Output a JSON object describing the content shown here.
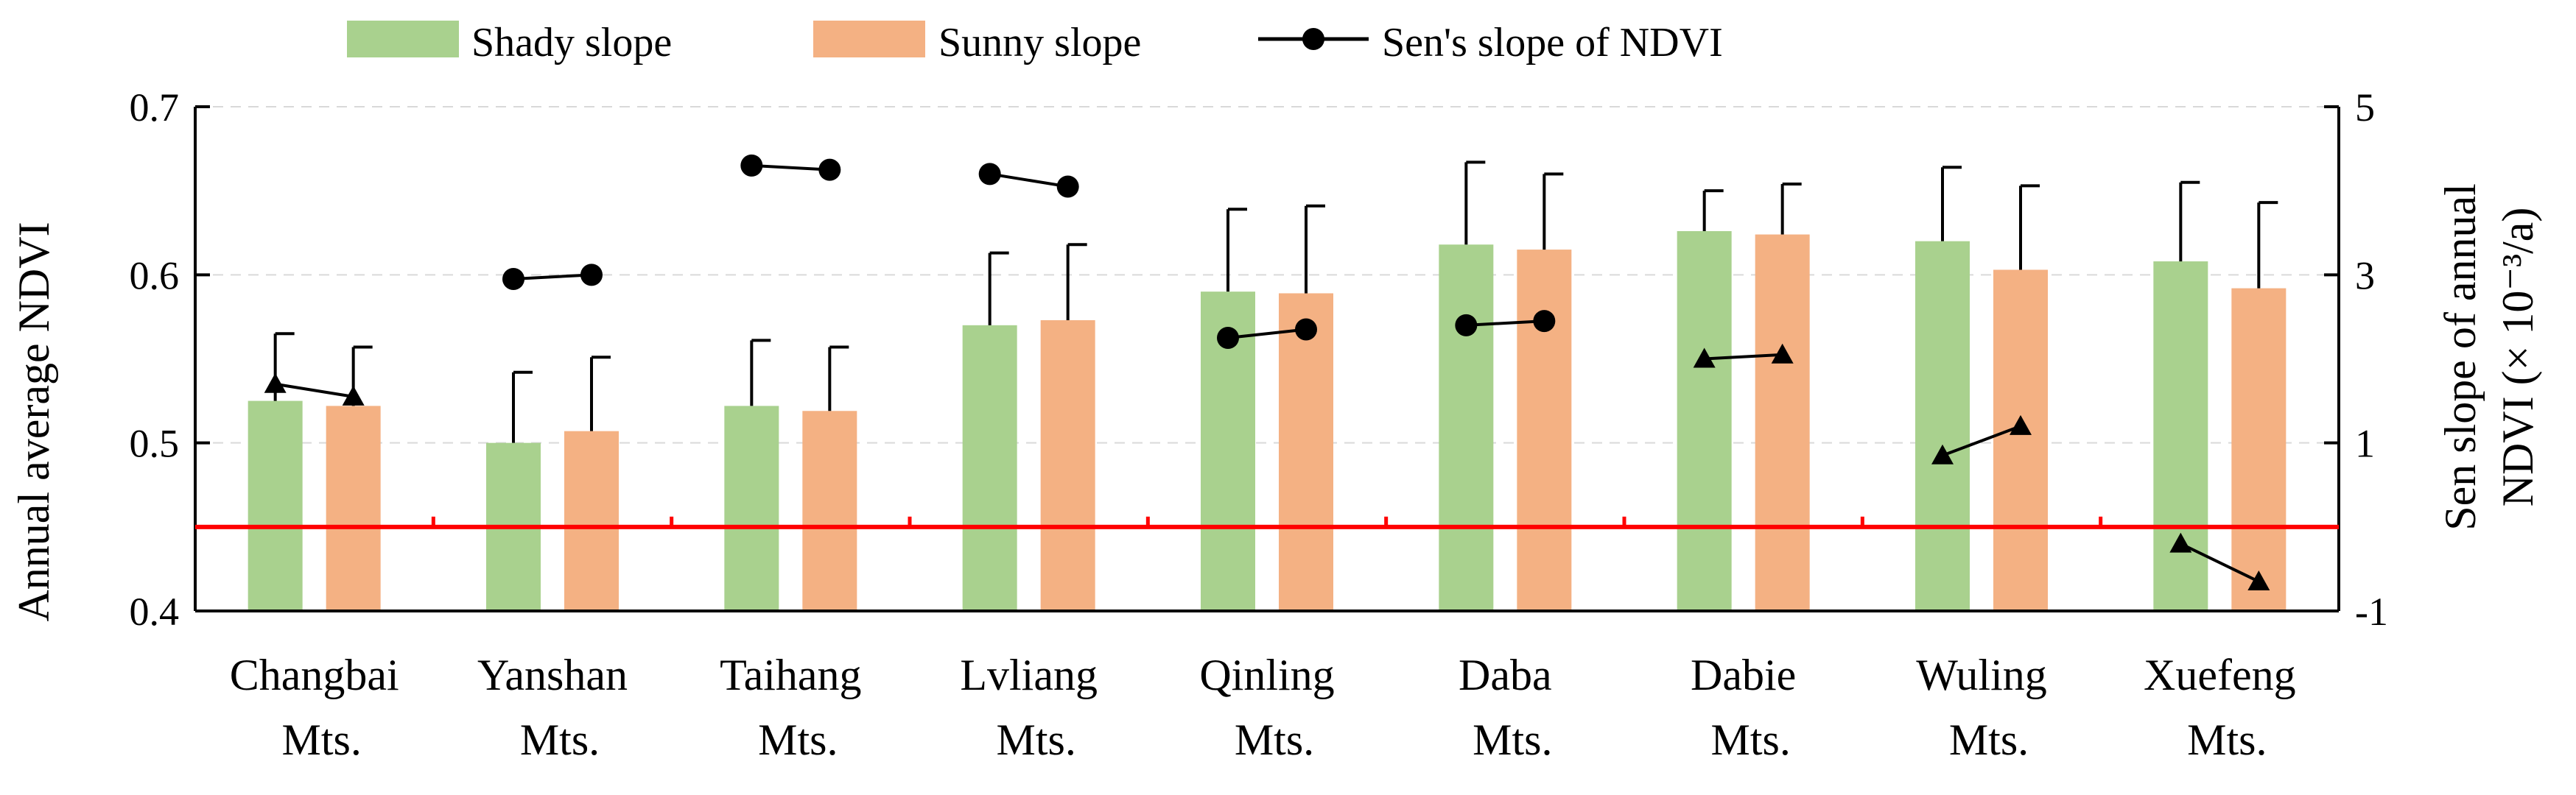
{
  "chart_data": {
    "type": "bar",
    "categories": [
      [
        "Changbai",
        "Mts."
      ],
      [
        "Yanshan",
        "Mts."
      ],
      [
        "Taihang",
        "Mts."
      ],
      [
        "Lvliang",
        "Mts."
      ],
      [
        "Qinling",
        "Mts."
      ],
      [
        "Daba",
        "Mts."
      ],
      [
        "Dabie",
        "Mts."
      ],
      [
        "Wuling",
        "Mts."
      ],
      [
        "Xuefeng",
        "Mts."
      ]
    ],
    "series": [
      {
        "name": "Shady slope",
        "color": "#a9d18e",
        "values": [
          0.525,
          0.5,
          0.522,
          0.57,
          0.59,
          0.618,
          0.626,
          0.62,
          0.608
        ],
        "error": [
          0.04,
          0.042,
          0.039,
          0.043,
          0.049,
          0.049,
          0.024,
          0.044,
          0.047
        ]
      },
      {
        "name": "Sunny slope",
        "color": "#f4b183",
        "values": [
          0.522,
          0.507,
          0.519,
          0.573,
          0.589,
          0.615,
          0.624,
          0.603,
          0.592
        ],
        "error": [
          0.035,
          0.044,
          0.038,
          0.045,
          0.052,
          0.045,
          0.03,
          0.05,
          0.051
        ]
      }
    ],
    "sen_slope": {
      "name": "Sen's slope of NDVI",
      "pairs": [
        {
          "values": [
            1.7,
            1.55
          ],
          "marker": "triangle"
        },
        {
          "values": [
            2.95,
            3.0
          ],
          "marker": "circle"
        },
        {
          "values": [
            4.3,
            4.25
          ],
          "marker": "circle"
        },
        {
          "values": [
            4.2,
            4.05
          ],
          "marker": "circle"
        },
        {
          "values": [
            2.25,
            2.35
          ],
          "marker": "circle"
        },
        {
          "values": [
            2.4,
            2.45
          ],
          "marker": "circle"
        },
        {
          "values": [
            2.0,
            2.05
          ],
          "marker": "triangle"
        },
        {
          "values": [
            0.85,
            1.2
          ],
          "marker": "triangle"
        },
        {
          "values": [
            -0.2,
            -0.65
          ],
          "marker": "triangle"
        }
      ]
    },
    "y_left": {
      "label": "Annual average NDVI",
      "min": 0.4,
      "max": 0.7,
      "ticks": [
        "0.4",
        "0.5",
        "0.6",
        "0.7"
      ]
    },
    "y_right": {
      "label_line1": "Sen slope of  annual",
      "label_line2": "NDVI (× 10⁻³/a)",
      "min": -1,
      "max": 5,
      "ticks": [
        "-1",
        "1",
        "3",
        "5"
      ]
    },
    "reference_line": {
      "value": 0.45,
      "color": "#ff0000"
    },
    "grid": true,
    "legend_position": "top"
  }
}
